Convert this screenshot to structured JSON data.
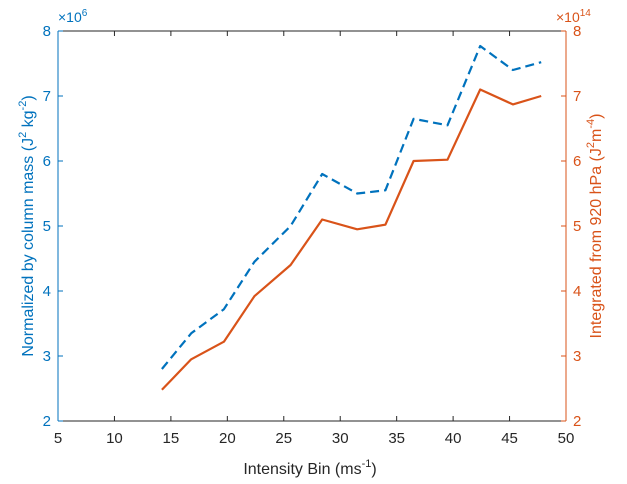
{
  "colors": {
    "left_axis": "#0072BD",
    "right_axis": "#D95319",
    "axis_dark": "#262626"
  },
  "chart_data": {
    "type": "line",
    "title": "",
    "xlabel": "Intensity Bin (ms",
    "xlabel_exponent": "-1",
    "xlabel_suffix": ")",
    "xlim": [
      5,
      50
    ],
    "x_ticks": [
      5,
      10,
      15,
      20,
      25,
      30,
      35,
      40,
      45,
      50
    ],
    "grid": false,
    "legend": "none",
    "left_axis": {
      "label": "Normalized by column mass (J",
      "label_sup1": "2",
      "label_mid": " kg",
      "label_sup2": "-2",
      "label_end": ")",
      "ylim": [
        2,
        8
      ],
      "ticks": [
        2,
        3,
        4,
        5,
        6,
        7,
        8
      ],
      "multiplier_prefix": "×10",
      "multiplier_exponent": "6"
    },
    "right_axis": {
      "label": "Integrated from 920 hPa (J",
      "label_sup1": "2",
      "label_mid": "m",
      "label_sup2": "-4",
      "label_end": ")",
      "ylim": [
        2,
        8
      ],
      "ticks": [
        2,
        3,
        4,
        5,
        6,
        7,
        8
      ],
      "multiplier_prefix": "×10",
      "multiplier_exponent": "14"
    },
    "series": [
      {
        "axis": "left",
        "style": "dashed",
        "color": "#0072BD",
        "x": [
          14.2,
          16.8,
          19.7,
          22.4,
          25.6,
          28.4,
          31.5,
          34.0,
          36.5,
          39.5,
          42.4,
          45.3,
          47.8
        ],
        "values": [
          2.8,
          3.35,
          3.72,
          4.45,
          5.0,
          5.8,
          5.5,
          5.55,
          6.65,
          6.55,
          7.77,
          7.4,
          7.52
        ]
      },
      {
        "axis": "right",
        "style": "solid",
        "color": "#D95319",
        "x": [
          14.2,
          16.8,
          19.7,
          22.4,
          25.6,
          28.4,
          31.5,
          34.0,
          36.5,
          39.5,
          42.4,
          45.3,
          47.8
        ],
        "values": [
          2.48,
          2.95,
          3.22,
          3.92,
          4.4,
          5.1,
          4.95,
          5.02,
          6.0,
          6.02,
          7.1,
          6.87,
          7.0
        ]
      }
    ]
  }
}
